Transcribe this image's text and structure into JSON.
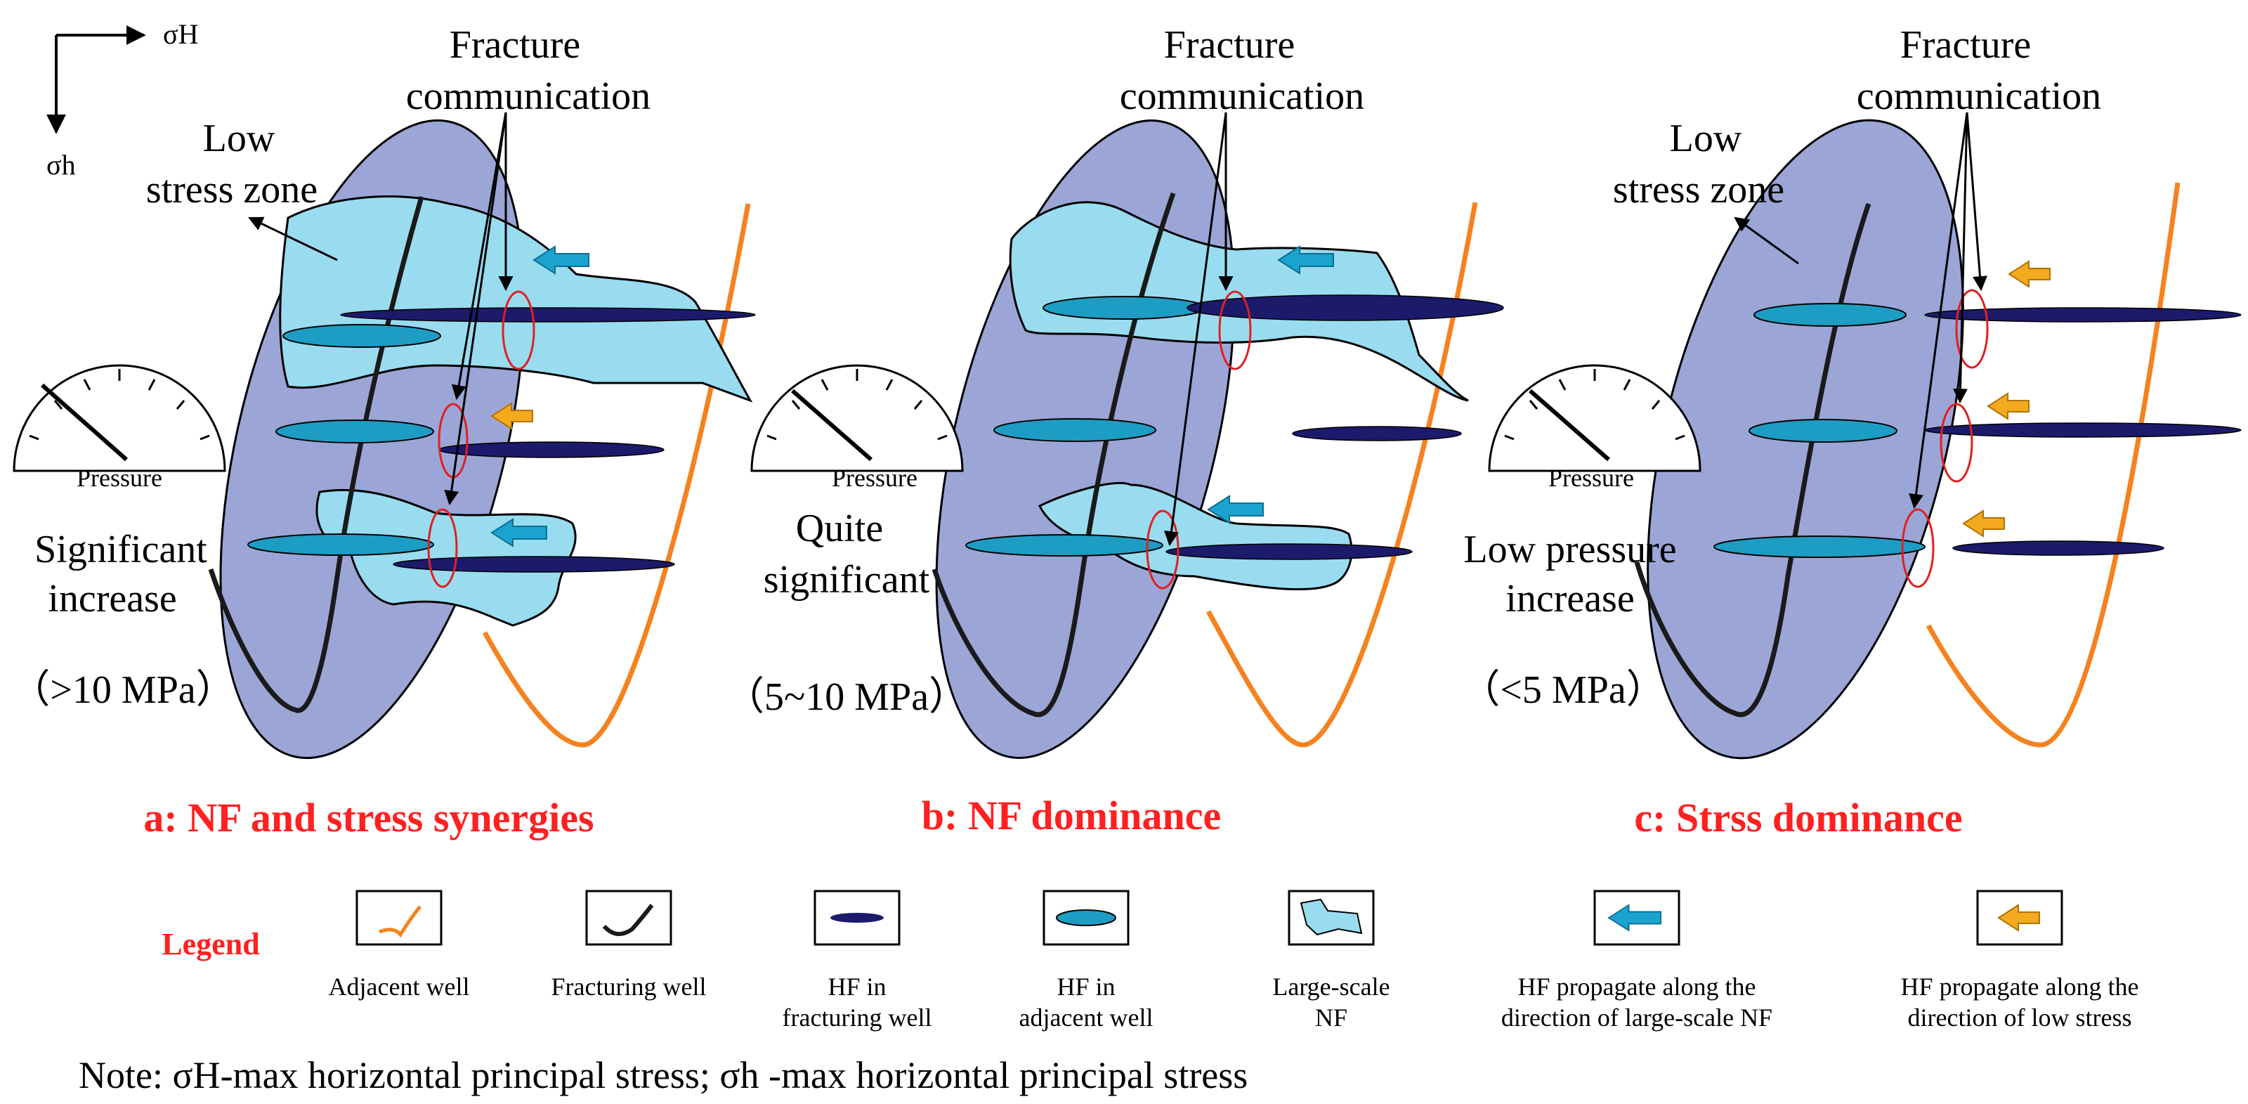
{
  "axes": {
    "x_label": "σH",
    "y_label": "σh"
  },
  "panels": [
    {
      "id": "a",
      "title": "a: NF and stress synergies",
      "fracture_label_1": "Fracture",
      "fracture_label_2": "communication",
      "zone_label_1": "Low",
      "zone_label_2": "stress zone",
      "gauge_label": "Pressure",
      "pressure_line_1": "Significant",
      "pressure_line_2": "increase",
      "pressure_value": "（>10 MPa）"
    },
    {
      "id": "b",
      "title": "b: NF dominance",
      "fracture_label_1": "Fracture",
      "fracture_label_2": "communication",
      "gauge_label": "Pressure",
      "pressure_line_1": "Quite",
      "pressure_line_2": "significant",
      "pressure_value": "（5~10 MPa）"
    },
    {
      "id": "c",
      "title": "c: Strss dominance",
      "fracture_label_1": "Fracture",
      "fracture_label_2": "communication",
      "zone_label_1": "Low",
      "zone_label_2": "stress zone",
      "gauge_label": "Pressure",
      "pressure_line_1": "Low pressure",
      "pressure_line_2": "increase",
      "pressure_value": "（<5 MPa）"
    }
  ],
  "legend": {
    "title": "Legend",
    "items": [
      {
        "icon": "adjacent-well-icon",
        "line1": "Adjacent well",
        "line2": ""
      },
      {
        "icon": "fracturing-well-icon",
        "line1": "Fracturing well",
        "line2": ""
      },
      {
        "icon": "hf-fracturing-well-icon",
        "line1": "HF in",
        "line2": "fracturing well"
      },
      {
        "icon": "hf-adjacent-well-icon",
        "line1": "HF in",
        "line2": "adjacent  well"
      },
      {
        "icon": "large-scale-nf-icon",
        "line1": "Large-scale",
        "line2": "NF"
      },
      {
        "icon": "cyan-arrow-icon",
        "line1": "HF propagate along the",
        "line2": "direction of large-scale NF"
      },
      {
        "icon": "orange-arrow-icon",
        "line1": "HF propagate along the",
        "line2": "direction of low stress"
      }
    ]
  },
  "note": "Note: σH-max horizontal principal stress; σh -max horizontal principal stress",
  "colors": {
    "reservoir": "#9ba6d6",
    "nf": "#99dcf0",
    "hf_adjacent": "#1e9dc4",
    "hf_fracturing": "#1c1a6b",
    "adjacent_well": "#f5821f",
    "arrow_cyan": "#1aa3cf",
    "arrow_orange": "#f4a91f",
    "title_red": "#ff2020"
  }
}
